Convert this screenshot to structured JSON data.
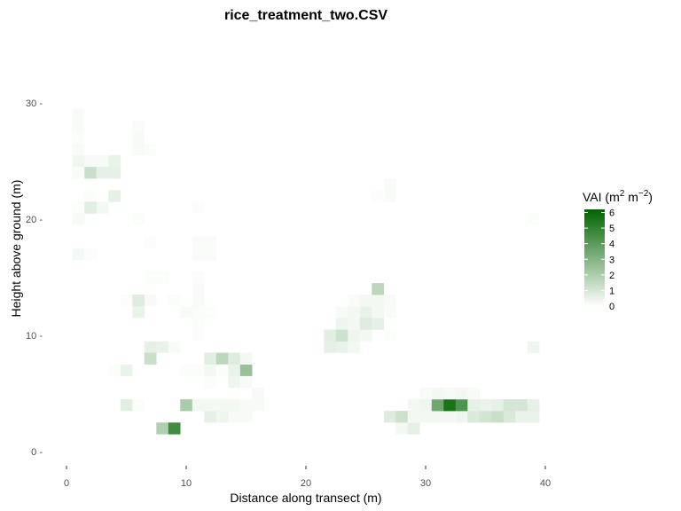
{
  "chart_data": {
    "type": "heatmap",
    "title": "rice_treatment_two.CSV",
    "xlabel": "Distance along transect (m)",
    "ylabel": "Height above ground (m)",
    "xlim": [
      -2.5,
      45
    ],
    "ylim": [
      -2,
      34
    ],
    "x_ticks": [
      0,
      10,
      20,
      30,
      40
    ],
    "y_ticks": [
      0,
      10,
      20,
      30
    ],
    "x_tick_labels": [
      "0",
      "10",
      "20",
      "30",
      "40"
    ],
    "y_tick_labels": [
      "0 -",
      "10 -",
      "20 -",
      "30 -"
    ],
    "legend": {
      "title_parts": [
        "VAI (m",
        "2",
        " m",
        "−2",
        ")"
      ],
      "ticks": [
        0,
        1,
        2,
        3,
        4,
        5,
        6
      ],
      "tick_labels": [
        "0",
        "1",
        "2",
        "3",
        "4",
        "5",
        "6"
      ],
      "range": [
        0,
        6.2
      ],
      "placement": "right",
      "color_low": "#ffffff",
      "color_high": "#006400"
    },
    "grid": false,
    "cells": [
      {
        "x": 1,
        "y": 29,
        "v": 0.15
      },
      {
        "x": 1,
        "y": 28,
        "v": 0.15
      },
      {
        "x": 1,
        "y": 27,
        "v": 0.1
      },
      {
        "x": 1,
        "y": 26,
        "v": 0.2
      },
      {
        "x": 1,
        "y": 25,
        "v": 0.35
      },
      {
        "x": 1,
        "y": 24,
        "v": 0.15
      },
      {
        "x": 1,
        "y": 21,
        "v": 0.1
      },
      {
        "x": 1,
        "y": 20,
        "v": 0.2
      },
      {
        "x": 1,
        "y": 17,
        "v": 0.25
      },
      {
        "x": 2,
        "y": 25,
        "v": 0.2
      },
      {
        "x": 2,
        "y": 24,
        "v": 1.3
      },
      {
        "x": 2,
        "y": 22,
        "v": 0.1
      },
      {
        "x": 2,
        "y": 21,
        "v": 0.7
      },
      {
        "x": 2,
        "y": 17,
        "v": 0.1
      },
      {
        "x": 3,
        "y": 25,
        "v": 0.2
      },
      {
        "x": 3,
        "y": 24,
        "v": 0.6
      },
      {
        "x": 3,
        "y": 21,
        "v": 0.3
      },
      {
        "x": 4,
        "y": 25,
        "v": 0.5
      },
      {
        "x": 4,
        "y": 24,
        "v": 0.6
      },
      {
        "x": 4,
        "y": 22,
        "v": 0.6
      },
      {
        "x": 5,
        "y": 13,
        "v": 0.1
      },
      {
        "x": 5,
        "y": 7,
        "v": 0.5
      },
      {
        "x": 5,
        "y": 4,
        "v": 0.7
      },
      {
        "x": 4,
        "y": 7,
        "v": 0.1
      },
      {
        "x": 6,
        "y": 28,
        "v": 0.15
      },
      {
        "x": 6,
        "y": 27,
        "v": 0.2
      },
      {
        "x": 6,
        "y": 26,
        "v": 0.2
      },
      {
        "x": 7,
        "y": 26,
        "v": 0.1
      },
      {
        "x": 6,
        "y": 20,
        "v": 0.1
      },
      {
        "x": 6,
        "y": 13,
        "v": 0.8
      },
      {
        "x": 6,
        "y": 12,
        "v": 0.5
      },
      {
        "x": 6,
        "y": 4,
        "v": 0.1
      },
      {
        "x": 7,
        "y": 18,
        "v": 0.1
      },
      {
        "x": 7,
        "y": 13,
        "v": 0.2
      },
      {
        "x": 7,
        "y": 9,
        "v": 0.6
      },
      {
        "x": 7,
        "y": 8,
        "v": 1.3
      },
      {
        "x": 7,
        "y": 15,
        "v": 0.1
      },
      {
        "x": 8,
        "y": 15,
        "v": 0.1
      },
      {
        "x": 8,
        "y": 9,
        "v": 0.5
      },
      {
        "x": 8,
        "y": 2,
        "v": 1.9
      },
      {
        "x": 9,
        "y": 2,
        "v": 4.6
      },
      {
        "x": 9,
        "y": 9,
        "v": 0.15
      },
      {
        "x": 9,
        "y": 13,
        "v": 0.1
      },
      {
        "x": 10,
        "y": 4,
        "v": 2.1
      },
      {
        "x": 10,
        "y": 12,
        "v": 0.2
      },
      {
        "x": 10,
        "y": 7,
        "v": 0.1
      },
      {
        "x": 11,
        "y": 4,
        "v": 0.3
      },
      {
        "x": 11,
        "y": 7,
        "v": 0.1
      },
      {
        "x": 11,
        "y": 10,
        "v": 0.1
      },
      {
        "x": 11,
        "y": 11,
        "v": 0.1
      },
      {
        "x": 11,
        "y": 12,
        "v": 0.1
      },
      {
        "x": 11,
        "y": 13,
        "v": 0.2
      },
      {
        "x": 11,
        "y": 14,
        "v": 0.2
      },
      {
        "x": 11,
        "y": 15,
        "v": 0.1
      },
      {
        "x": 11,
        "y": 17,
        "v": 0.15
      },
      {
        "x": 11,
        "y": 18,
        "v": 0.15
      },
      {
        "x": 11,
        "y": 21,
        "v": 0.1
      },
      {
        "x": 12,
        "y": 3,
        "v": 0.6
      },
      {
        "x": 12,
        "y": 4,
        "v": 0.3
      },
      {
        "x": 12,
        "y": 6,
        "v": 0.1
      },
      {
        "x": 12,
        "y": 7,
        "v": 0.3
      },
      {
        "x": 12,
        "y": 8,
        "v": 0.7
      },
      {
        "x": 12,
        "y": 12,
        "v": 0.1
      },
      {
        "x": 12,
        "y": 17,
        "v": 0.15
      },
      {
        "x": 12,
        "y": 18,
        "v": 0.15
      },
      {
        "x": 13,
        "y": 3,
        "v": 0.4
      },
      {
        "x": 13,
        "y": 4,
        "v": 0.3
      },
      {
        "x": 13,
        "y": 8,
        "v": 1.6
      },
      {
        "x": 13,
        "y": 7,
        "v": 0.1
      },
      {
        "x": 14,
        "y": 3,
        "v": 0.2
      },
      {
        "x": 14,
        "y": 4,
        "v": 0.3
      },
      {
        "x": 14,
        "y": 6,
        "v": 0.4
      },
      {
        "x": 14,
        "y": 7,
        "v": 0.5
      },
      {
        "x": 14,
        "y": 8,
        "v": 0.8
      },
      {
        "x": 15,
        "y": 3,
        "v": 0.2
      },
      {
        "x": 15,
        "y": 4,
        "v": 0.2
      },
      {
        "x": 15,
        "y": 7,
        "v": 2.5
      },
      {
        "x": 15,
        "y": 8,
        "v": 0.3
      },
      {
        "x": 15,
        "y": 6,
        "v": 0.2
      },
      {
        "x": 16,
        "y": 4,
        "v": 0.2
      },
      {
        "x": 16,
        "y": 5,
        "v": 0.2
      },
      {
        "x": 22,
        "y": 9,
        "v": 0.6
      },
      {
        "x": 22,
        "y": 10,
        "v": 0.7
      },
      {
        "x": 23,
        "y": 9,
        "v": 0.5
      },
      {
        "x": 23,
        "y": 10,
        "v": 1.2
      },
      {
        "x": 23,
        "y": 11,
        "v": 0.4
      },
      {
        "x": 23,
        "y": 12,
        "v": 0.2
      },
      {
        "x": 24,
        "y": 9,
        "v": 0.3
      },
      {
        "x": 24,
        "y": 10,
        "v": 0.4
      },
      {
        "x": 24,
        "y": 11,
        "v": 0.3
      },
      {
        "x": 24,
        "y": 12,
        "v": 0.3
      },
      {
        "x": 24,
        "y": 13,
        "v": 0.15
      },
      {
        "x": 25,
        "y": 10,
        "v": 0.3
      },
      {
        "x": 25,
        "y": 11,
        "v": 0.8
      },
      {
        "x": 25,
        "y": 12,
        "v": 0.5
      },
      {
        "x": 25,
        "y": 13,
        "v": 0.3
      },
      {
        "x": 26,
        "y": 11,
        "v": 0.6
      },
      {
        "x": 26,
        "y": 12,
        "v": 0.3
      },
      {
        "x": 26,
        "y": 13,
        "v": 0.3
      },
      {
        "x": 26,
        "y": 14,
        "v": 1.6
      },
      {
        "x": 27,
        "y": 13,
        "v": 0.2
      },
      {
        "x": 27,
        "y": 12,
        "v": 0.15
      },
      {
        "x": 27,
        "y": 10,
        "v": 0.1
      },
      {
        "x": 27,
        "y": 22,
        "v": 0.15
      },
      {
        "x": 27,
        "y": 23,
        "v": 0.15
      },
      {
        "x": 26,
        "y": 22,
        "v": 0.1
      },
      {
        "x": 27,
        "y": 3,
        "v": 0.8
      },
      {
        "x": 28,
        "y": 2,
        "v": 0.3
      },
      {
        "x": 28,
        "y": 3,
        "v": 1.2
      },
      {
        "x": 29,
        "y": 2,
        "v": 0.6
      },
      {
        "x": 29,
        "y": 3,
        "v": 0.3
      },
      {
        "x": 29,
        "y": 4,
        "v": 0.3
      },
      {
        "x": 30,
        "y": 3,
        "v": 0.3
      },
      {
        "x": 30,
        "y": 4,
        "v": 0.4
      },
      {
        "x": 30,
        "y": 5,
        "v": 0.15
      },
      {
        "x": 31,
        "y": 3,
        "v": 0.3
      },
      {
        "x": 31,
        "y": 4,
        "v": 3.5
      },
      {
        "x": 31,
        "y": 5,
        "v": 0.3
      },
      {
        "x": 32,
        "y": 3,
        "v": 0.3
      },
      {
        "x": 32,
        "y": 4,
        "v": 5.6
      },
      {
        "x": 32,
        "y": 5,
        "v": 0.2
      },
      {
        "x": 33,
        "y": 3,
        "v": 0.4
      },
      {
        "x": 33,
        "y": 4,
        "v": 4.3
      },
      {
        "x": 33,
        "y": 5,
        "v": 0.3
      },
      {
        "x": 34,
        "y": 3,
        "v": 0.9
      },
      {
        "x": 34,
        "y": 4,
        "v": 0.6
      },
      {
        "x": 34,
        "y": 5,
        "v": 0.2
      },
      {
        "x": 35,
        "y": 3,
        "v": 1.1
      },
      {
        "x": 35,
        "y": 4,
        "v": 0.5
      },
      {
        "x": 36,
        "y": 3,
        "v": 1.3
      },
      {
        "x": 36,
        "y": 4,
        "v": 0.6
      },
      {
        "x": 37,
        "y": 3,
        "v": 0.9
      },
      {
        "x": 37,
        "y": 4,
        "v": 1.0
      },
      {
        "x": 38,
        "y": 3,
        "v": 0.5
      },
      {
        "x": 38,
        "y": 4,
        "v": 1.0
      },
      {
        "x": 39,
        "y": 3,
        "v": 0.5
      },
      {
        "x": 39,
        "y": 4,
        "v": 0.6
      },
      {
        "x": 39,
        "y": 9,
        "v": 0.4
      },
      {
        "x": 39,
        "y": 20,
        "v": 0.1
      }
    ]
  }
}
